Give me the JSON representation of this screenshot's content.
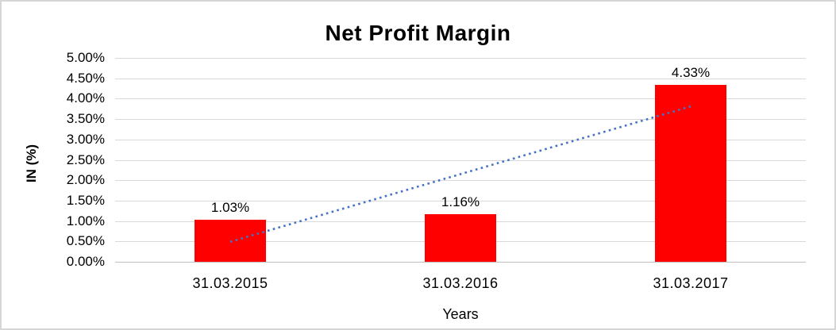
{
  "chart_data": {
    "type": "bar",
    "title": "Net Profit Margin",
    "xlabel": "Years",
    "ylabel": "IN (%)",
    "categories": [
      "31.03.2015",
      "31.03.2016",
      "31.03.2017"
    ],
    "values": [
      1.03,
      1.16,
      4.33
    ],
    "data_labels": [
      "1.03%",
      "1.16%",
      "4.33%"
    ],
    "ylim": [
      0,
      5
    ],
    "ytick_step": 0.5,
    "ytick_labels": [
      "0.00%",
      "0.50%",
      "1.00%",
      "1.50%",
      "2.00%",
      "2.50%",
      "3.00%",
      "3.50%",
      "4.00%",
      "4.50%",
      "5.00%"
    ],
    "grid": true,
    "legend": "none",
    "bar_color": "#ff0000",
    "gridline_color": "#d9d9d9",
    "axis_line_color": "#bfbfbf",
    "trendline": {
      "type": "linear",
      "style": "dotted",
      "color": "#4472c4",
      "start_category_index": 0,
      "start_value": 0.49,
      "end_category_index": 2,
      "end_value": 3.81
    }
  }
}
